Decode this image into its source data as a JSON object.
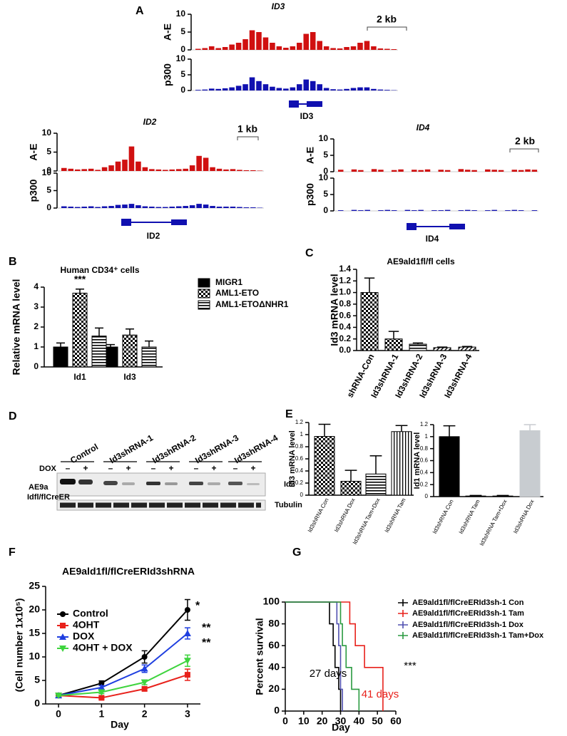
{
  "panels": [
    "A",
    "B",
    "C",
    "D",
    "E",
    "F",
    "G"
  ],
  "blot": {
    "lanes": [
      "Control",
      "Id3shRNA-1",
      "Id3shRNA-2",
      "Id3shRNA-3",
      "Id3shRNA-4"
    ],
    "dox_label": "DOX",
    "dox_signs": [
      "–",
      "+",
      "–",
      "+",
      "–",
      "+",
      "–",
      "+",
      "–",
      "+"
    ],
    "cell_label": [
      "AE9a",
      "Idfl/flCreER"
    ],
    "bands": [
      "Id3",
      "Tubulin"
    ]
  },
  "chart_data": [
    {
      "type": "track",
      "title": "ID3",
      "gene": "ID3",
      "scale_bar": "2 kb",
      "ylim": [
        0,
        10
      ],
      "yticks": [
        0,
        5,
        10
      ],
      "tracks": [
        {
          "name": "A-E",
          "color": "#d01010",
          "values": [
            0.3,
            0.5,
            1,
            0.5,
            0.8,
            1.5,
            2,
            3,
            5.5,
            5,
            3.5,
            2,
            1,
            0.6,
            1,
            2,
            4.5,
            5,
            2.5,
            1,
            0.5,
            0.4,
            0.8,
            1,
            2,
            2.5,
            1,
            0.4,
            0.3,
            0.2
          ]
        },
        {
          "name": "p300",
          "color": "#1010b0",
          "values": [
            0.2,
            0.3,
            0.6,
            0.5,
            0.7,
            1,
            1.5,
            2,
            4.2,
            3,
            2,
            1.2,
            0.8,
            0.6,
            1,
            2,
            3.5,
            3,
            2,
            0.8,
            0.4,
            0.3,
            0.5,
            0.8,
            1,
            1,
            0.5,
            0.3,
            0.2,
            0.1
          ]
        }
      ]
    },
    {
      "type": "track",
      "title": "ID2",
      "gene": "ID2",
      "scale_bar": "1 kb",
      "ylim": [
        0,
        10
      ],
      "yticks": [
        0,
        5,
        10
      ],
      "tracks": [
        {
          "name": "A-E",
          "color": "#d01010",
          "values": [
            0.8,
            0.6,
            0.4,
            0.5,
            0.6,
            0.3,
            1,
            1.5,
            2.5,
            3,
            6.5,
            2.5,
            1,
            0.5,
            0.4,
            0.3,
            0.4,
            0.5,
            0.6,
            1.5,
            4,
            3.5,
            1,
            0.6,
            0.4,
            0.5,
            0.3,
            0.2,
            0.2,
            0.1
          ]
        },
        {
          "name": "p300",
          "color": "#1010b0",
          "values": [
            0.5,
            0.4,
            0.3,
            0.4,
            0.5,
            0.3,
            0.5,
            0.6,
            0.9,
            1,
            1.2,
            0.8,
            0.5,
            0.4,
            0.3,
            0.3,
            0.4,
            0.5,
            0.6,
            0.8,
            1.2,
            1,
            0.6,
            0.4,
            0.4,
            0.4,
            0.3,
            0.2,
            0.2,
            0.1
          ]
        }
      ]
    },
    {
      "type": "track",
      "title": "ID4",
      "gene": "ID4",
      "scale_bar": "2 kb",
      "ylim": [
        0,
        10
      ],
      "yticks": [
        0,
        5,
        10
      ],
      "tracks": [
        {
          "name": "A-E",
          "color": "#d01010",
          "values": [
            0.6,
            0,
            0.7,
            0.5,
            0,
            0.8,
            0.6,
            0,
            0.5,
            0.7,
            0,
            0.6,
            0.5,
            0.7,
            0,
            0.6,
            0.5,
            0,
            0.8,
            0.6,
            0.5,
            0,
            0.7,
            0.6,
            0.5,
            0,
            0.6,
            0.5,
            0.7,
            0.6
          ]
        },
        {
          "name": "p300",
          "color": "#1010b0",
          "values": [
            0.2,
            0,
            0.3,
            0.2,
            0.3,
            0,
            0.2,
            0.3,
            0.2,
            0,
            0.3,
            0.2,
            0.3,
            0,
            0.2,
            0.2,
            0.3,
            0,
            0.2,
            0.3,
            0.2,
            0,
            0.2,
            0.3,
            0,
            0.2,
            0.3,
            0.2,
            0,
            0.2
          ]
        }
      ]
    },
    {
      "type": "bar",
      "title": "Human CD34⁺ cells",
      "y_label": "Relative mRNA level",
      "categories": [
        "Id1",
        "Id3"
      ],
      "series": [
        {
          "name": "MIGR1",
          "color": "#000000",
          "pattern": "solid",
          "values": [
            1.0,
            1.0
          ],
          "errors": [
            0.2,
            0.12
          ]
        },
        {
          "name": "AML1-ETO",
          "color": "#000000",
          "pattern": "checker",
          "values": [
            3.7,
            1.6
          ],
          "errors": [
            0.2,
            0.3
          ]
        },
        {
          "name": "AML1-ETOΔNHR1",
          "color": "#000000",
          "pattern": "hstripe",
          "values": [
            1.55,
            1.0
          ],
          "errors": [
            0.4,
            0.3
          ]
        }
      ],
      "ylim": [
        0,
        4
      ],
      "yticks": [
        0,
        1,
        2,
        3,
        4
      ],
      "annotations": [
        "***"
      ]
    },
    {
      "type": "bar",
      "title": "AE9ald1fl/fl cells",
      "y_label": "Id3 mRNA level",
      "categories": [
        "shRNA-Con",
        "Id3shRNA-1",
        "Id3shRNA-2",
        "Id3shRNA-3",
        "Id3shRNA-4"
      ],
      "values": [
        1.0,
        0.2,
        0.11,
        0.05,
        0.06
      ],
      "errors": [
        0.25,
        0.13,
        0.02,
        0.01,
        0.01
      ],
      "colors": [
        "#000000",
        "#000000",
        "#000000",
        "#000000",
        "#000000"
      ],
      "patterns": [
        "checker",
        "checker",
        "hstripe",
        "dstripe",
        "dstripe"
      ],
      "ylim": [
        0,
        1.4
      ],
      "yticks": [
        {
          "value": 0,
          "label": "0.0"
        },
        0.2,
        0.4,
        0.6,
        0.8,
        {
          "value": 1,
          "label": "1.0"
        },
        1.2,
        1.4
      ]
    },
    {
      "type": "bar",
      "y_label": "Id3 mRNA level",
      "categories": [
        "Id3shRNA Con",
        "Id3shRNA Dox",
        "Id3shRNA Tam+Dox",
        "Id3shRNA Tam"
      ],
      "values": [
        0.97,
        0.23,
        0.35,
        1.05
      ],
      "errors": [
        0.2,
        0.18,
        0.3,
        0.1
      ],
      "colors": [
        "#000000",
        "#000000",
        "#000000",
        "#000000"
      ],
      "patterns": [
        "checker",
        "checker",
        "hstripe",
        "vstripe"
      ],
      "ylim": [
        0,
        1.2
      ],
      "yticks": [
        0,
        0.2,
        0.4,
        0.6,
        0.8,
        1,
        1.2
      ]
    },
    {
      "type": "bar",
      "y_label": "Id1 mRNA level",
      "categories": [
        "Id3shRNA Con",
        "Id3shRNA Tam",
        "Id3shRNA Tam+Dox",
        "Id3shRNA Dox"
      ],
      "values": [
        1.0,
        0.01,
        0.01,
        1.1
      ],
      "errors": [
        0.18,
        0.01,
        0.01,
        0.1
      ],
      "colors": [
        "#000000",
        "#000000",
        "#000000",
        "#c8ccd0"
      ],
      "patterns": [
        "solid",
        "solid",
        "solid",
        "solid"
      ],
      "ylim": [
        0,
        1.2
      ],
      "yticks": [
        0,
        0.2,
        0.4,
        0.6,
        0.8,
        1,
        1.2
      ]
    },
    {
      "type": "line",
      "title": "AE9ald1fl/flCreERId3shRNA",
      "x_label": "Day",
      "y_label": "(Cell number 1x10⁵)",
      "x": [
        0,
        1,
        2,
        3
      ],
      "series": [
        {
          "name": "Control",
          "color": "#000000",
          "marker": "circle",
          "values": [
            1.8,
            4.4,
            10,
            20
          ],
          "errors": [
            0.2,
            0.5,
            1.3,
            2.2
          ]
        },
        {
          "name": "4OHT",
          "color": "#e8211b",
          "marker": "square",
          "values": [
            1.8,
            1.3,
            3.2,
            6.2
          ],
          "errors": [
            0.2,
            0.3,
            0.4,
            1.2
          ]
        },
        {
          "name": "DOX",
          "color": "#1f3fe0",
          "marker": "triangle",
          "values": [
            1.8,
            3.5,
            7.5,
            15
          ],
          "errors": [
            0.2,
            0.4,
            0.8,
            1.2
          ]
        },
        {
          "name": "4OHT + DOX",
          "color": "#3ed43e",
          "marker": "triangle-down",
          "values": [
            1.8,
            2.5,
            4.6,
            9.2
          ],
          "errors": [
            0.2,
            0.3,
            0.5,
            1.2
          ]
        }
      ],
      "xlim": [
        -0.3,
        3.3
      ],
      "xticks": [
        0,
        1,
        2,
        3
      ],
      "ylim": [
        0,
        25
      ],
      "yticks": [
        0,
        5,
        10,
        15,
        20,
        25
      ],
      "annotations": [
        "*",
        "**",
        "**"
      ]
    },
    {
      "type": "step",
      "x_label": "Day",
      "y_label": "Percent survival",
      "series": [
        {
          "name": "AE9ald1fl/flCreERId3sh-1 Con",
          "color": "#000000",
          "x": [
            0,
            24,
            26,
            27,
            29,
            30
          ],
          "values": [
            100,
            80,
            60,
            40,
            20,
            0
          ]
        },
        {
          "name": "AE9ald1fl/flCreERId3sh-1 Tam",
          "color": "#e8211b",
          "x": [
            0,
            35,
            38,
            43,
            53
          ],
          "values": [
            100,
            80,
            60,
            40,
            0
          ]
        },
        {
          "name": "AE9ald1fl/flCreERId3sh-1 Dox",
          "color": "#5050b0",
          "x": [
            0,
            28,
            29,
            30,
            31
          ],
          "values": [
            100,
            80,
            60,
            20,
            0
          ]
        },
        {
          "name": "AE9ald1fl/flCreERId3sh-1 Tam+Dox",
          "color": "#2a9a40",
          "x": [
            0,
            30,
            31,
            33,
            36,
            40
          ],
          "values": [
            100,
            80,
            60,
            40,
            20,
            0
          ]
        }
      ],
      "xlim": [
        0,
        60
      ],
      "xticks": [
        0,
        10,
        20,
        30,
        40,
        50,
        60
      ],
      "ylim": [
        0,
        100
      ],
      "yticks": [
        0,
        20,
        40,
        60,
        80,
        100
      ],
      "annotations": [
        "27 days",
        "41 days",
        "***"
      ]
    }
  ]
}
